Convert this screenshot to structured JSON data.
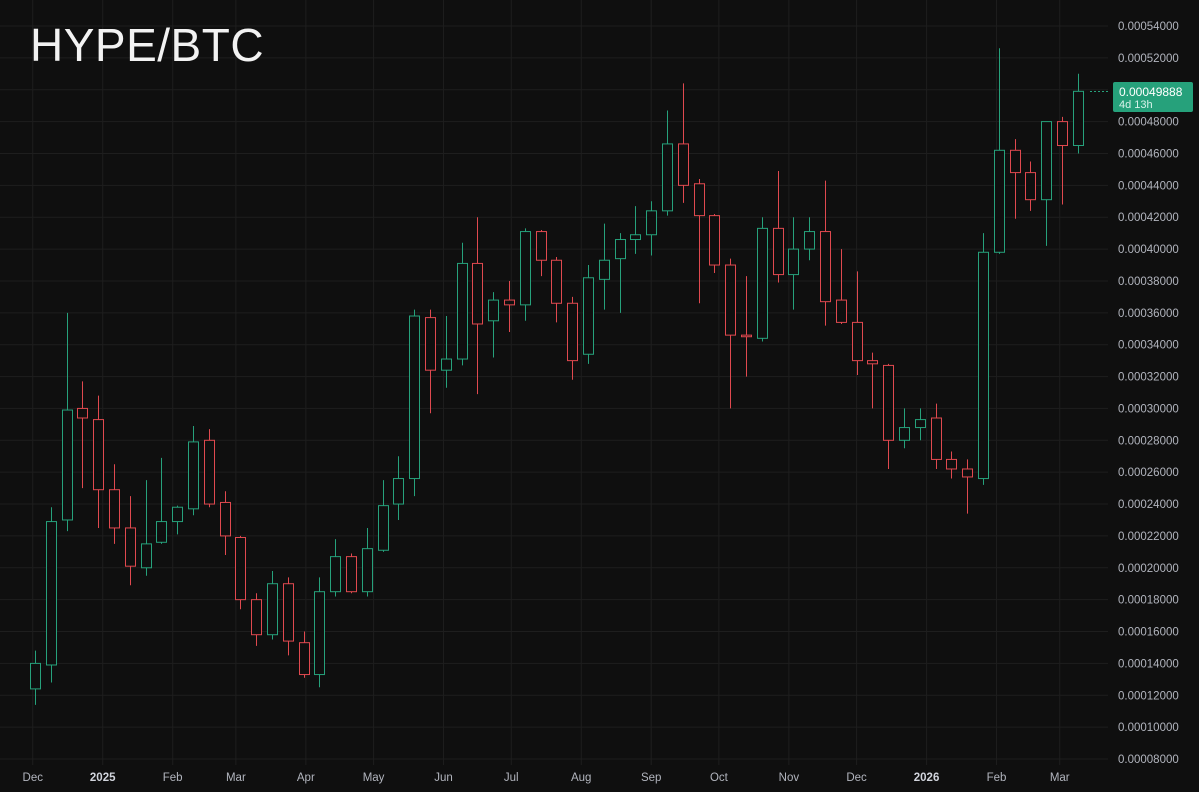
{
  "chart_data": {
    "type": "candlestick",
    "title": "HYPE/BTC",
    "interval": "weekly",
    "last_price": "0.00049888",
    "countdown": "4d 13h",
    "colors": {
      "up": "#26a17b",
      "down": "#e0494f",
      "background": "#0f0f0f",
      "grid": "#1e1e1e",
      "badge": "#26a17b"
    },
    "grid": true,
    "y_axis": {
      "position": "right",
      "range": [
        8e-05,
        0.00054
      ],
      "ticks": [
        "0.00054000",
        "0.00052000",
        "0.00050000",
        "0.00048000",
        "0.00046000",
        "0.00044000",
        "0.00042000",
        "0.00040000",
        "0.00038000",
        "0.00036000",
        "0.00034000",
        "0.00032000",
        "0.00030000",
        "0.00028000",
        "0.00026000",
        "0.00024000",
        "0.00022000",
        "0.00020000",
        "0.00018000",
        "0.00016000",
        "0.00014000",
        "0.00012000",
        "0.00010000",
        "0.00008000"
      ]
    },
    "x_axis": {
      "first_candle_date": "2024-12-02",
      "ticks": [
        {
          "label": "Dec",
          "date": "2024-12-01",
          "year": false
        },
        {
          "label": "2025",
          "date": "2025-01-01",
          "year": true
        },
        {
          "label": "Feb",
          "date": "2025-02-01",
          "year": false
        },
        {
          "label": "Mar",
          "date": "2025-03-01",
          "year": false
        },
        {
          "label": "Apr",
          "date": "2025-04-01",
          "year": false
        },
        {
          "label": "May",
          "date": "2025-05-01",
          "year": false
        },
        {
          "label": "Jun",
          "date": "2025-06-01",
          "year": false
        },
        {
          "label": "Jul",
          "date": "2025-07-01",
          "year": false
        },
        {
          "label": "Aug",
          "date": "2025-08-01",
          "year": false
        },
        {
          "label": "Sep",
          "date": "2025-09-01",
          "year": false
        },
        {
          "label": "Oct",
          "date": "2025-10-01",
          "year": false
        },
        {
          "label": "Nov",
          "date": "2025-11-01",
          "year": false
        },
        {
          "label": "Dec",
          "date": "2025-12-01",
          "year": false
        },
        {
          "label": "2026",
          "date": "2026-01-01",
          "year": true
        },
        {
          "label": "Feb",
          "date": "2026-02-01",
          "year": false
        },
        {
          "label": "Mar",
          "date": "2026-03-01",
          "year": false
        }
      ]
    },
    "candles": [
      {
        "date": "2024-12-02",
        "o": 0.000124,
        "h": 0.000148,
        "l": 0.000114,
        "c": 0.00014
      },
      {
        "date": "2024-12-09",
        "o": 0.000139,
        "h": 0.000238,
        "l": 0.000128,
        "c": 0.000229
      },
      {
        "date": "2024-12-16",
        "o": 0.00023,
        "h": 0.00036,
        "l": 0.000223,
        "c": 0.000299
      },
      {
        "date": "2024-12-23",
        "o": 0.0003,
        "h": 0.000317,
        "l": 0.00025,
        "c": 0.000294
      },
      {
        "date": "2024-12-30",
        "o": 0.000293,
        "h": 0.000308,
        "l": 0.000225,
        "c": 0.000249
      },
      {
        "date": "2025-01-06",
        "o": 0.000249,
        "h": 0.000265,
        "l": 0.000215,
        "c": 0.000225
      },
      {
        "date": "2025-01-13",
        "o": 0.000225,
        "h": 0.000245,
        "l": 0.000189,
        "c": 0.000201
      },
      {
        "date": "2025-01-20",
        "o": 0.0002,
        "h": 0.000255,
        "l": 0.000195,
        "c": 0.000215
      },
      {
        "date": "2025-01-27",
        "o": 0.000216,
        "h": 0.000269,
        "l": 0.000215,
        "c": 0.000229
      },
      {
        "date": "2025-02-03",
        "o": 0.000229,
        "h": 0.000239,
        "l": 0.000221,
        "c": 0.000238
      },
      {
        "date": "2025-02-10",
        "o": 0.000237,
        "h": 0.000289,
        "l": 0.000233,
        "c": 0.000279
      },
      {
        "date": "2025-02-17",
        "o": 0.00028,
        "h": 0.000287,
        "l": 0.000238,
        "c": 0.00024
      },
      {
        "date": "2025-02-24",
        "o": 0.000241,
        "h": 0.000248,
        "l": 0.000208,
        "c": 0.00022
      },
      {
        "date": "2025-03-03",
        "o": 0.000219,
        "h": 0.00022,
        "l": 0.000174,
        "c": 0.00018
      },
      {
        "date": "2025-03-10",
        "o": 0.00018,
        "h": 0.000184,
        "l": 0.000151,
        "c": 0.000158
      },
      {
        "date": "2025-03-17",
        "o": 0.000158,
        "h": 0.000198,
        "l": 0.000155,
        "c": 0.00019
      },
      {
        "date": "2025-03-24",
        "o": 0.00019,
        "h": 0.000194,
        "l": 0.000145,
        "c": 0.000154
      },
      {
        "date": "2025-03-31",
        "o": 0.000153,
        "h": 0.00016,
        "l": 0.000131,
        "c": 0.000133
      },
      {
        "date": "2025-04-07",
        "o": 0.000133,
        "h": 0.000194,
        "l": 0.000125,
        "c": 0.000185
      },
      {
        "date": "2025-04-14",
        "o": 0.000185,
        "h": 0.000218,
        "l": 0.000182,
        "c": 0.000207
      },
      {
        "date": "2025-04-21",
        "o": 0.000207,
        "h": 0.000209,
        "l": 0.000184,
        "c": 0.000185
      },
      {
        "date": "2025-04-28",
        "o": 0.000185,
        "h": 0.000225,
        "l": 0.000182,
        "c": 0.000212
      },
      {
        "date": "2025-05-05",
        "o": 0.000211,
        "h": 0.000255,
        "l": 0.00021,
        "c": 0.000239
      },
      {
        "date": "2025-05-12",
        "o": 0.00024,
        "h": 0.00027,
        "l": 0.00023,
        "c": 0.000256
      },
      {
        "date": "2025-05-19",
        "o": 0.000256,
        "h": 0.000362,
        "l": 0.000245,
        "c": 0.000358
      },
      {
        "date": "2025-05-26",
        "o": 0.000357,
        "h": 0.000362,
        "l": 0.000297,
        "c": 0.000324
      },
      {
        "date": "2025-06-02",
        "o": 0.000324,
        "h": 0.000358,
        "l": 0.000313,
        "c": 0.000331
      },
      {
        "date": "2025-06-09",
        "o": 0.000331,
        "h": 0.000404,
        "l": 0.000327,
        "c": 0.000391
      },
      {
        "date": "2025-06-16",
        "o": 0.000391,
        "h": 0.00042,
        "l": 0.000309,
        "c": 0.000353
      },
      {
        "date": "2025-06-23",
        "o": 0.000355,
        "h": 0.000373,
        "l": 0.000332,
        "c": 0.000368
      },
      {
        "date": "2025-06-30",
        "o": 0.000368,
        "h": 0.00038,
        "l": 0.000348,
        "c": 0.000365
      },
      {
        "date": "2025-07-07",
        "o": 0.000365,
        "h": 0.000413,
        "l": 0.000355,
        "c": 0.000411
      },
      {
        "date": "2025-07-14",
        "o": 0.000411,
        "h": 0.000412,
        "l": 0.000383,
        "c": 0.000393
      },
      {
        "date": "2025-07-21",
        "o": 0.000393,
        "h": 0.000395,
        "l": 0.000354,
        "c": 0.000366
      },
      {
        "date": "2025-07-28",
        "o": 0.000366,
        "h": 0.00037,
        "l": 0.000318,
        "c": 0.00033
      },
      {
        "date": "2025-08-04",
        "o": 0.000334,
        "h": 0.00039,
        "l": 0.000328,
        "c": 0.000382
      },
      {
        "date": "2025-08-11",
        "o": 0.000381,
        "h": 0.000416,
        "l": 0.000362,
        "c": 0.000393
      },
      {
        "date": "2025-08-18",
        "o": 0.000394,
        "h": 0.00041,
        "l": 0.00036,
        "c": 0.000406
      },
      {
        "date": "2025-08-25",
        "o": 0.000406,
        "h": 0.000427,
        "l": 0.000397,
        "c": 0.000409
      },
      {
        "date": "2025-09-01",
        "o": 0.000409,
        "h": 0.00043,
        "l": 0.000396,
        "c": 0.000424
      },
      {
        "date": "2025-09-08",
        "o": 0.000424,
        "h": 0.000487,
        "l": 0.000421,
        "c": 0.000466
      },
      {
        "date": "2025-09-15",
        "o": 0.000466,
        "h": 0.000504,
        "l": 0.000429,
        "c": 0.00044
      },
      {
        "date": "2025-09-22",
        "o": 0.000441,
        "h": 0.000444,
        "l": 0.000366,
        "c": 0.000421
      },
      {
        "date": "2025-09-29",
        "o": 0.000421,
        "h": 0.000422,
        "l": 0.000385,
        "c": 0.00039
      },
      {
        "date": "2025-10-06",
        "o": 0.00039,
        "h": 0.000394,
        "l": 0.0003,
        "c": 0.000346
      },
      {
        "date": "2025-10-13",
        "o": 0.000346,
        "h": 0.000383,
        "l": 0.00032,
        "c": 0.000345
      },
      {
        "date": "2025-10-20",
        "o": 0.000344,
        "h": 0.00042,
        "l": 0.000342,
        "c": 0.000413
      },
      {
        "date": "2025-10-27",
        "o": 0.000413,
        "h": 0.000449,
        "l": 0.000379,
        "c": 0.000384
      },
      {
        "date": "2025-11-03",
        "o": 0.000384,
        "h": 0.00042,
        "l": 0.000362,
        "c": 0.0004
      },
      {
        "date": "2025-11-10",
        "o": 0.0004,
        "h": 0.00042,
        "l": 0.000393,
        "c": 0.000411
      },
      {
        "date": "2025-11-17",
        "o": 0.000411,
        "h": 0.000443,
        "l": 0.000352,
        "c": 0.000367
      },
      {
        "date": "2025-11-24",
        "o": 0.000368,
        "h": 0.0004,
        "l": 0.000353,
        "c": 0.000354
      },
      {
        "date": "2025-12-01",
        "o": 0.000354,
        "h": 0.000386,
        "l": 0.000321,
        "c": 0.00033
      },
      {
        "date": "2025-12-08",
        "o": 0.00033,
        "h": 0.000335,
        "l": 0.0003,
        "c": 0.000328
      },
      {
        "date": "2025-12-15",
        "o": 0.000327,
        "h": 0.000328,
        "l": 0.000262,
        "c": 0.00028
      },
      {
        "date": "2025-12-22",
        "o": 0.00028,
        "h": 0.0003,
        "l": 0.000275,
        "c": 0.000288
      },
      {
        "date": "2025-12-29",
        "o": 0.000288,
        "h": 0.0003,
        "l": 0.00028,
        "c": 0.000293
      },
      {
        "date": "2026-01-05",
        "o": 0.000294,
        "h": 0.000303,
        "l": 0.000262,
        "c": 0.000268
      },
      {
        "date": "2026-01-12",
        "o": 0.000268,
        "h": 0.000273,
        "l": 0.000256,
        "c": 0.000262
      },
      {
        "date": "2026-01-19",
        "o": 0.000262,
        "h": 0.000268,
        "l": 0.000234,
        "c": 0.000257
      },
      {
        "date": "2026-01-26",
        "o": 0.000256,
        "h": 0.00041,
        "l": 0.000252,
        "c": 0.000398
      },
      {
        "date": "2026-02-02",
        "o": 0.000398,
        "h": 0.000526,
        "l": 0.000397,
        "c": 0.000462
      },
      {
        "date": "2026-02-09",
        "o": 0.000462,
        "h": 0.000469,
        "l": 0.000419,
        "c": 0.000448
      },
      {
        "date": "2026-02-16",
        "o": 0.000448,
        "h": 0.000455,
        "l": 0.000424,
        "c": 0.000431
      },
      {
        "date": "2026-02-23",
        "o": 0.000431,
        "h": 0.00048,
        "l": 0.000402,
        "c": 0.00048
      },
      {
        "date": "2026-03-02",
        "o": 0.00048,
        "h": 0.000483,
        "l": 0.000428,
        "c": 0.000465
      },
      {
        "date": "2026-03-09",
        "o": 0.000465,
        "h": 0.00051,
        "l": 0.00046,
        "c": 0.000499
      }
    ]
  }
}
